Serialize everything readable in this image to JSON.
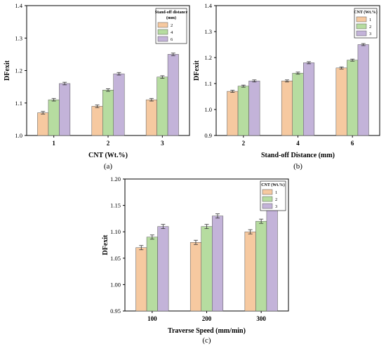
{
  "figure": {
    "panels": [
      "(a)",
      "(b)",
      "(c)"
    ]
  },
  "colors": {
    "s1": "#f6c9a0",
    "s2": "#b6dca0",
    "s3": "#c3b3d9",
    "border": "#000000"
  },
  "chart_data": [
    {
      "type": "bar",
      "panel_label": "(a)",
      "xlabel": "CNT (Wt.%)",
      "ylabel": "DFexit",
      "categories": [
        "1",
        "2",
        "3"
      ],
      "ylim": [
        1.0,
        1.4
      ],
      "yticks": [
        "1.0",
        "1.1",
        "1.2",
        "1.3",
        "1.4"
      ],
      "legend_title": "Stand-off distance (mm)",
      "legend_position": "top-right",
      "series": [
        {
          "name": "2",
          "values": [
            1.07,
            1.09,
            1.11
          ],
          "errors": [
            0.004,
            0.004,
            0.004
          ]
        },
        {
          "name": "4",
          "values": [
            1.11,
            1.14,
            1.18
          ],
          "errors": [
            0.004,
            0.004,
            0.004
          ]
        },
        {
          "name": "6",
          "values": [
            1.16,
            1.19,
            1.25
          ],
          "errors": [
            0.004,
            0.004,
            0.004
          ]
        }
      ]
    },
    {
      "type": "bar",
      "panel_label": "(b)",
      "xlabel": "Stand-off Distance (mm)",
      "ylabel": "DFexit",
      "categories": [
        "2",
        "4",
        "6"
      ],
      "ylim": [
        0.9,
        1.4
      ],
      "yticks": [
        "0.9",
        "1.0",
        "1.1",
        "1.2",
        "1.3",
        "1.4"
      ],
      "legend_title": "CNT (Wt.%)",
      "legend_position": "top-right",
      "series": [
        {
          "name": "1",
          "values": [
            1.07,
            1.11,
            1.16
          ],
          "errors": [
            0.004,
            0.004,
            0.004
          ]
        },
        {
          "name": "2",
          "values": [
            1.09,
            1.14,
            1.19
          ],
          "errors": [
            0.004,
            0.004,
            0.004
          ]
        },
        {
          "name": "3",
          "values": [
            1.11,
            1.18,
            1.25
          ],
          "errors": [
            0.004,
            0.004,
            0.004
          ]
        }
      ]
    },
    {
      "type": "bar",
      "panel_label": "(c)",
      "xlabel": "Traverse Speed (mm/min)",
      "ylabel": "DFexit",
      "categories": [
        "100",
        "200",
        "300"
      ],
      "ylim": [
        0.95,
        1.2
      ],
      "yticks": [
        "0.95",
        "1.00",
        "1.05",
        "1.10",
        "1.15",
        "1.20"
      ],
      "legend_title": "CNT (Wt.%)",
      "legend_position": "top-right",
      "series": [
        {
          "name": "1",
          "values": [
            1.07,
            1.08,
            1.1
          ],
          "errors": [
            0.004,
            0.004,
            0.004
          ]
        },
        {
          "name": "2",
          "values": [
            1.09,
            1.11,
            1.12
          ],
          "errors": [
            0.004,
            0.004,
            0.004
          ]
        },
        {
          "name": "3",
          "values": [
            1.11,
            1.13,
            1.15
          ],
          "errors": [
            0.004,
            0.004,
            0.004
          ]
        }
      ]
    }
  ]
}
